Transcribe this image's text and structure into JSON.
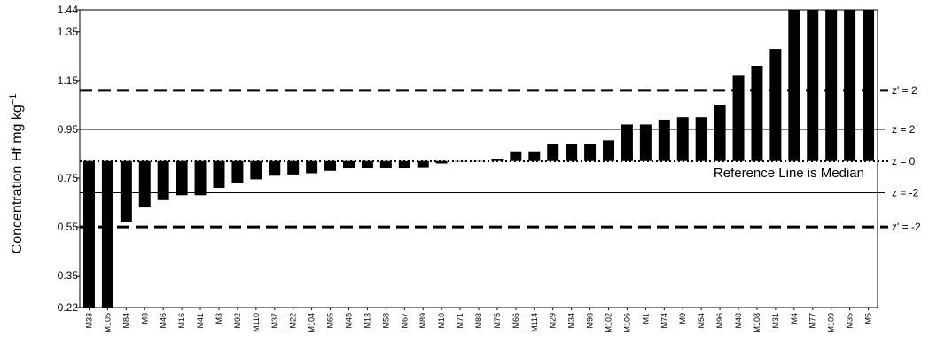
{
  "chart_data": {
    "type": "bar",
    "ylabel": "Concentration Hf mg kg",
    "ylabel_sup": "−1",
    "xlabel": "",
    "ylim": [
      0.22,
      1.44
    ],
    "yticks": [
      "1.44",
      "1.35",
      "1.15",
      "0.95",
      "0.75",
      "0.55",
      "0.35",
      "0.22"
    ],
    "grid": false,
    "median": 0.82,
    "median_label": "Reference Line is Median",
    "bar_color": "#000000",
    "reference_lines": [
      {
        "value": 1.11,
        "label": "z' = 2",
        "style": "dashed"
      },
      {
        "value": 0.95,
        "label": "z = 2",
        "style": "solid"
      },
      {
        "value": 0.82,
        "label": "z = 0",
        "style": "dotted"
      },
      {
        "value": 0.69,
        "label": "z = -2",
        "style": "solid"
      },
      {
        "value": 0.55,
        "label": "z' = -2",
        "style": "dashed"
      }
    ],
    "categories": [
      "M33",
      "M105",
      "M84",
      "M8",
      "M46",
      "M16",
      "M41",
      "M3",
      "M92",
      "M110",
      "M37",
      "M22",
      "M104",
      "M65",
      "M45",
      "M13",
      "M58",
      "M67",
      "M89",
      "M10",
      "M71",
      "M88",
      "M75",
      "M66",
      "M114",
      "M29",
      "M34",
      "M98",
      "M102",
      "M106",
      "M1",
      "M74",
      "M9",
      "M54",
      "M96",
      "M48",
      "M108",
      "M31",
      "M4",
      "M77",
      "M109",
      "M35",
      "M5"
    ],
    "values": [
      0.22,
      0.22,
      0.57,
      0.63,
      0.66,
      0.68,
      0.68,
      0.71,
      0.73,
      0.745,
      0.76,
      0.765,
      0.77,
      0.78,
      0.79,
      0.79,
      0.79,
      0.79,
      0.795,
      0.81,
      0.82,
      0.82,
      0.83,
      0.86,
      0.86,
      0.89,
      0.89,
      0.89,
      0.905,
      0.97,
      0.97,
      0.99,
      1.0,
      1.0,
      1.05,
      1.17,
      1.21,
      1.28,
      1.44,
      1.44,
      1.44,
      1.44,
      1.44
    ]
  }
}
